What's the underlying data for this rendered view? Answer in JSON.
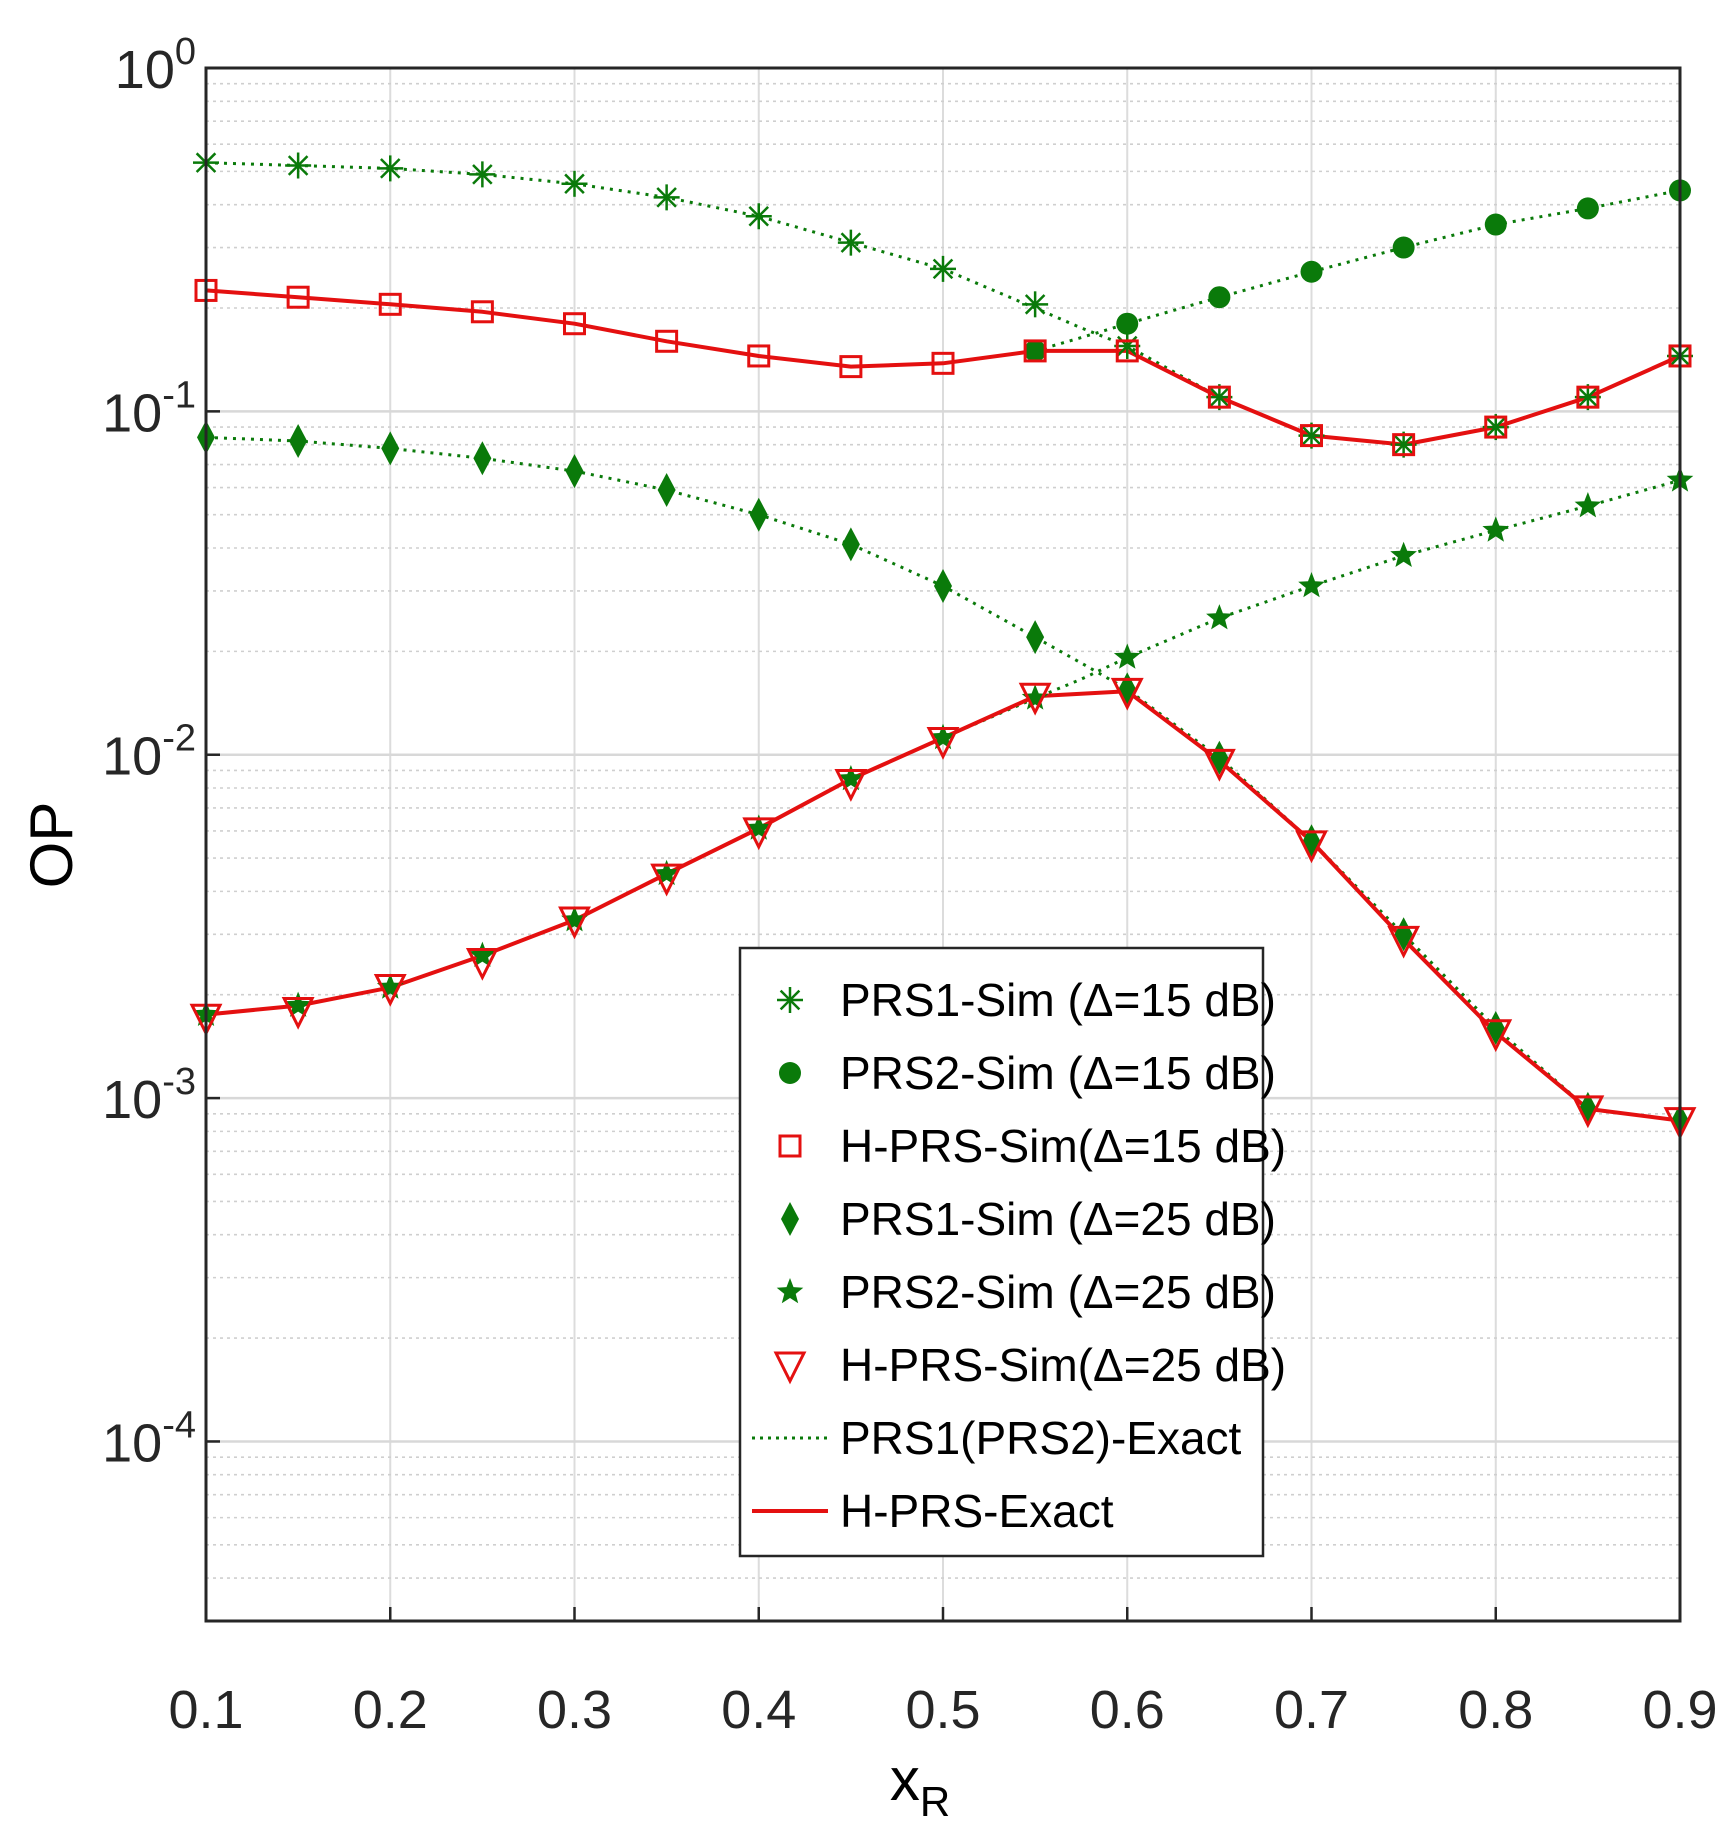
{
  "chart_data": {
    "type": "line",
    "title": "",
    "xlabel": "x",
    "xlabel_sub": "R",
    "ylabel": "OP",
    "yscale": "log",
    "xlim": [
      0.1,
      0.9
    ],
    "ylim": [
      3e-05,
      1
    ],
    "grid": true,
    "legend_position": "bottom-right",
    "x_ticks": [
      "0.1",
      "0.2",
      "0.3",
      "0.4",
      "0.5",
      "0.6",
      "0.7",
      "0.8",
      "0.9"
    ],
    "y_ticks": [
      {
        "value": 1,
        "base": "10",
        "exp": "0"
      },
      {
        "value": 0.1,
        "base": "10",
        "exp": "-1"
      },
      {
        "value": 0.01,
        "base": "10",
        "exp": "-2"
      },
      {
        "value": 0.001,
        "base": "10",
        "exp": "-3"
      },
      {
        "value": 0.0001,
        "base": "10",
        "exp": "-4"
      }
    ],
    "series": [
      {
        "name": "PRS1-Sim (Δ=15 dB)",
        "marker": "asterisk",
        "color": "#0a7a0a",
        "x": [
          0.1,
          0.15,
          0.2,
          0.25,
          0.3,
          0.35,
          0.4,
          0.45,
          0.5,
          0.55,
          0.6,
          0.65,
          0.7,
          0.75,
          0.8,
          0.85,
          0.9
        ],
        "values": [
          0.53,
          0.52,
          0.51,
          0.49,
          0.46,
          0.42,
          0.37,
          0.31,
          0.26,
          0.205,
          0.155,
          0.11,
          0.085,
          0.08,
          0.09,
          0.11,
          0.145
        ]
      },
      {
        "name": "PRS2-Sim (Δ=15 dB)",
        "marker": "circle",
        "color": "#0a7a0a",
        "x": [
          0.55,
          0.6,
          0.65,
          0.7,
          0.75,
          0.8,
          0.85,
          0.9
        ],
        "values": [
          0.15,
          0.18,
          0.215,
          0.255,
          0.3,
          0.35,
          0.39,
          0.44
        ]
      },
      {
        "name": "H-PRS-Sim(Δ=15 dB)",
        "marker": "square",
        "color": "#e41010",
        "x": [
          0.1,
          0.15,
          0.2,
          0.25,
          0.3,
          0.35,
          0.4,
          0.45,
          0.5,
          0.55,
          0.6,
          0.65,
          0.7,
          0.75,
          0.8,
          0.85,
          0.9
        ],
        "values": [
          0.225,
          0.215,
          0.205,
          0.195,
          0.18,
          0.16,
          0.145,
          0.135,
          0.138,
          0.15,
          0.15,
          0.11,
          0.085,
          0.08,
          0.09,
          0.11,
          0.145
        ]
      },
      {
        "name": "PRS1-Sim (Δ=25 dB)",
        "marker": "diamond",
        "color": "#0a7a0a",
        "x": [
          0.1,
          0.15,
          0.2,
          0.25,
          0.3,
          0.35,
          0.4,
          0.45,
          0.5,
          0.55,
          0.6,
          0.65,
          0.7,
          0.75,
          0.8,
          0.85,
          0.9
        ],
        "values": [
          0.084,
          0.082,
          0.078,
          0.073,
          0.067,
          0.059,
          0.05,
          0.041,
          0.031,
          0.022,
          0.0155,
          0.0098,
          0.0056,
          0.003,
          0.0016,
          0.00093,
          0.00086
        ]
      },
      {
        "name": "PRS2-Sim (Δ=25 dB)",
        "marker": "star",
        "color": "#0a7a0a",
        "x": [
          0.1,
          0.15,
          0.2,
          0.25,
          0.3,
          0.35,
          0.4,
          0.45,
          0.5,
          0.55,
          0.6,
          0.65,
          0.7,
          0.75,
          0.8,
          0.85,
          0.9
        ],
        "values": [
          0.00175,
          0.00186,
          0.0021,
          0.0026,
          0.0033,
          0.0045,
          0.0061,
          0.0085,
          0.0112,
          0.0146,
          0.0192,
          0.025,
          0.031,
          0.038,
          0.045,
          0.053,
          0.063
        ]
      },
      {
        "name": "H-PRS-Sim(Δ=25 dB)",
        "marker": "triangle-down",
        "color": "#e41010",
        "x": [
          0.1,
          0.15,
          0.2,
          0.25,
          0.3,
          0.35,
          0.4,
          0.45,
          0.5,
          0.55,
          0.6,
          0.65,
          0.7,
          0.75,
          0.8,
          0.85,
          0.9
        ],
        "values": [
          0.00172,
          0.0018,
          0.0021,
          0.0025,
          0.0033,
          0.0044,
          0.006,
          0.0083,
          0.011,
          0.0148,
          0.0153,
          0.0095,
          0.0055,
          0.0029,
          0.00155,
          0.00093,
          0.00086
        ]
      },
      {
        "name": "PRS1(PRS2)-Exact",
        "line": "dotted",
        "color": "#0a7a0a",
        "curves": [
          {
            "x": [
              0.1,
              0.15,
              0.2,
              0.25,
              0.3,
              0.35,
              0.4,
              0.45,
              0.5,
              0.55,
              0.575,
              0.6,
              0.65,
              0.7,
              0.75,
              0.8,
              0.85,
              0.9
            ],
            "values": [
              0.53,
              0.52,
              0.51,
              0.49,
              0.46,
              0.42,
              0.37,
              0.31,
              0.26,
              0.2,
              0.175,
              0.155,
              0.11,
              0.085,
              0.08,
              0.09,
              0.11,
              0.145
            ]
          },
          {
            "x": [
              0.55,
              0.575,
              0.6,
              0.65,
              0.7,
              0.75,
              0.8,
              0.85,
              0.9
            ],
            "values": [
              0.15,
              0.164,
              0.18,
              0.215,
              0.255,
              0.3,
              0.35,
              0.39,
              0.44
            ]
          },
          {
            "x": [
              0.1,
              0.15,
              0.2,
              0.25,
              0.3,
              0.35,
              0.4,
              0.45,
              0.5,
              0.55,
              0.575,
              0.6,
              0.65,
              0.7,
              0.75,
              0.8,
              0.85,
              0.9
            ],
            "values": [
              0.084,
              0.082,
              0.078,
              0.073,
              0.067,
              0.059,
              0.05,
              0.041,
              0.031,
              0.022,
              0.0185,
              0.0155,
              0.0098,
              0.0056,
              0.003,
              0.0016,
              0.00093,
              0.00086
            ]
          },
          {
            "x": [
              0.1,
              0.15,
              0.2,
              0.25,
              0.3,
              0.35,
              0.4,
              0.45,
              0.5,
              0.55,
              0.575,
              0.6,
              0.65,
              0.7,
              0.75,
              0.8,
              0.85,
              0.9
            ],
            "values": [
              0.00175,
              0.00186,
              0.0021,
              0.0026,
              0.0033,
              0.0045,
              0.0061,
              0.0085,
              0.0112,
              0.0146,
              0.0166,
              0.0192,
              0.025,
              0.031,
              0.038,
              0.045,
              0.053,
              0.063
            ]
          }
        ]
      },
      {
        "name": "H-PRS-Exact",
        "line": "solid",
        "color": "#e41010",
        "curves": [
          {
            "x": [
              0.1,
              0.15,
              0.2,
              0.25,
              0.3,
              0.35,
              0.4,
              0.45,
              0.5,
              0.55,
              0.6,
              0.65,
              0.7,
              0.75,
              0.8,
              0.85,
              0.9
            ],
            "values": [
              0.225,
              0.215,
              0.205,
              0.195,
              0.18,
              0.16,
              0.145,
              0.135,
              0.138,
              0.15,
              0.15,
              0.11,
              0.085,
              0.08,
              0.09,
              0.11,
              0.145
            ]
          },
          {
            "x": [
              0.1,
              0.15,
              0.2,
              0.25,
              0.3,
              0.35,
              0.4,
              0.45,
              0.5,
              0.55,
              0.6,
              0.65,
              0.7,
              0.75,
              0.8,
              0.85,
              0.9
            ],
            "values": [
              0.00175,
              0.00186,
              0.0021,
              0.0026,
              0.0033,
              0.0045,
              0.0061,
              0.0085,
              0.0112,
              0.0148,
              0.0153,
              0.0096,
              0.0056,
              0.0029,
              0.00155,
              0.00093,
              0.00086
            ]
          }
        ]
      }
    ],
    "legend": [
      {
        "label": "PRS1-Sim (Δ=15 dB)",
        "marker": "asterisk",
        "color": "#0a7a0a"
      },
      {
        "label": "PRS2-Sim (Δ=15 dB)",
        "marker": "circle",
        "color": "#0a7a0a"
      },
      {
        "label": "H-PRS-Sim(Δ=15 dB)",
        "marker": "square",
        "color": "#e41010"
      },
      {
        "label": "PRS1-Sim (Δ=25 dB)",
        "marker": "diamond",
        "color": "#0a7a0a"
      },
      {
        "label": "PRS2-Sim (Δ=25 dB)",
        "marker": "star",
        "color": "#0a7a0a"
      },
      {
        "label": "H-PRS-Sim(Δ=25 dB)",
        "marker": "triangle-down",
        "color": "#e41010"
      },
      {
        "label": "PRS1(PRS2)-Exact",
        "line": "dotted",
        "color": "#0a7a0a"
      },
      {
        "label": "H-PRS-Exact",
        "line": "solid",
        "color": "#e41010"
      }
    ]
  }
}
